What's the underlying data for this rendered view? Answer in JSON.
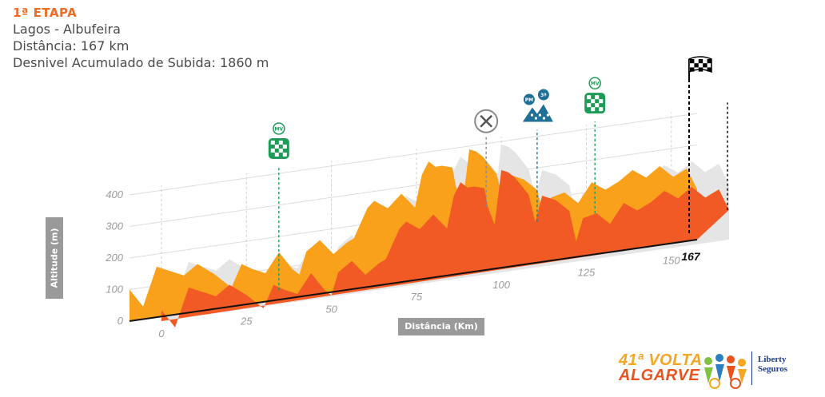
{
  "header": {
    "stage": "1ª ETAPA",
    "route": "Lagos - Albufeira",
    "distance": "Distância: 167 km",
    "climb": "Desnivel Acumulado de Subida: 1860 m"
  },
  "chart_data": {
    "type": "area",
    "title": "",
    "xlabel": "Distância (Km)",
    "ylabel": "Altitude (m)",
    "xlim": [
      0,
      167
    ],
    "ylim": [
      0,
      400
    ],
    "xticks": [
      0,
      25,
      50,
      75,
      100,
      125,
      150
    ],
    "end_label": "167",
    "yticks": [
      0,
      100,
      200,
      300,
      400
    ],
    "grid": true,
    "series": [
      {
        "x": [
          0,
          4,
          8,
          12,
          16,
          20,
          25,
          30,
          33,
          36,
          40,
          44,
          48,
          50,
          52,
          56,
          60,
          64,
          66,
          70,
          72,
          76,
          80,
          84,
          86,
          88,
          90,
          92,
          95,
          96,
          98,
          100,
          102,
          104,
          108,
          110,
          112,
          116,
          120,
          122,
          124,
          128,
          132,
          136,
          140,
          144,
          148,
          152,
          156,
          160,
          164,
          167
        ],
        "values": [
          100,
          40,
          160,
          140,
          120,
          150,
          110,
          60,
          130,
          110,
          90,
          150,
          90,
          70,
          140,
          170,
          120,
          150,
          160,
          250,
          270,
          240,
          280,
          230,
          330,
          370,
          350,
          350,
          340,
          280,
          220,
          390,
          380,
          360,
          300,
          210,
          290,
          270,
          230,
          130,
          200,
          210,
          170,
          230,
          200,
          220,
          250,
          220,
          250,
          210,
          230,
          160
        ]
      }
    ],
    "colors": {
      "area": "#f9a11b",
      "shadow": "#e5e5e5",
      "front": "#f15a24"
    },
    "markers": [
      {
        "km": 35,
        "type": "meta-volante",
        "badge": "MV",
        "color": "#1e9b57"
      },
      {
        "km": 96,
        "type": "abastecimento",
        "color": "#8a8a8a"
      },
      {
        "km": 111,
        "type": "premio-montanha",
        "badge": "PM",
        "category": "3ª",
        "color": "#1f6f96"
      },
      {
        "km": 128,
        "type": "meta-volante",
        "badge": "MV",
        "color": "#1e9b57"
      },
      {
        "km": 167,
        "type": "meta",
        "color": "#000000"
      }
    ]
  },
  "logo": {
    "line1": "41ª VOLTA",
    "line2": "ALGARVE",
    "sponsor_line1": "Liberty",
    "sponsor_line2": "Seguros"
  }
}
